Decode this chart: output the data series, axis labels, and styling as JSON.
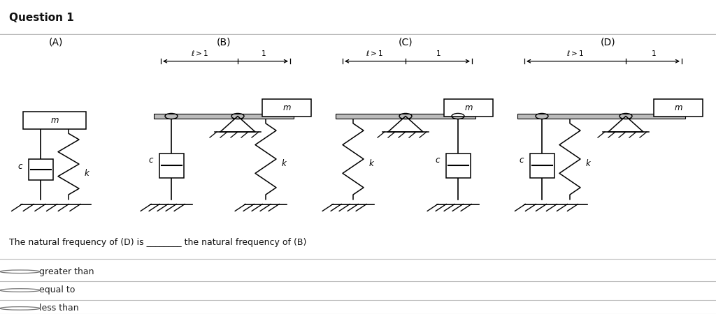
{
  "title": "Question 1",
  "title_bg": "#eeeeee",
  "bg_color": "#ffffff",
  "question_text": "The natural frequency of (D) is ________ the natural frequency of (B)",
  "options": [
    "greater than",
    "equal to",
    "less than"
  ],
  "systems": [
    "(A)",
    "(B)",
    "(C)",
    "(D)"
  ],
  "line_color": "#000000",
  "separator_color": "#cccccc",
  "title_fontsize": 11,
  "label_fontsize": 10,
  "body_fontsize": 9
}
